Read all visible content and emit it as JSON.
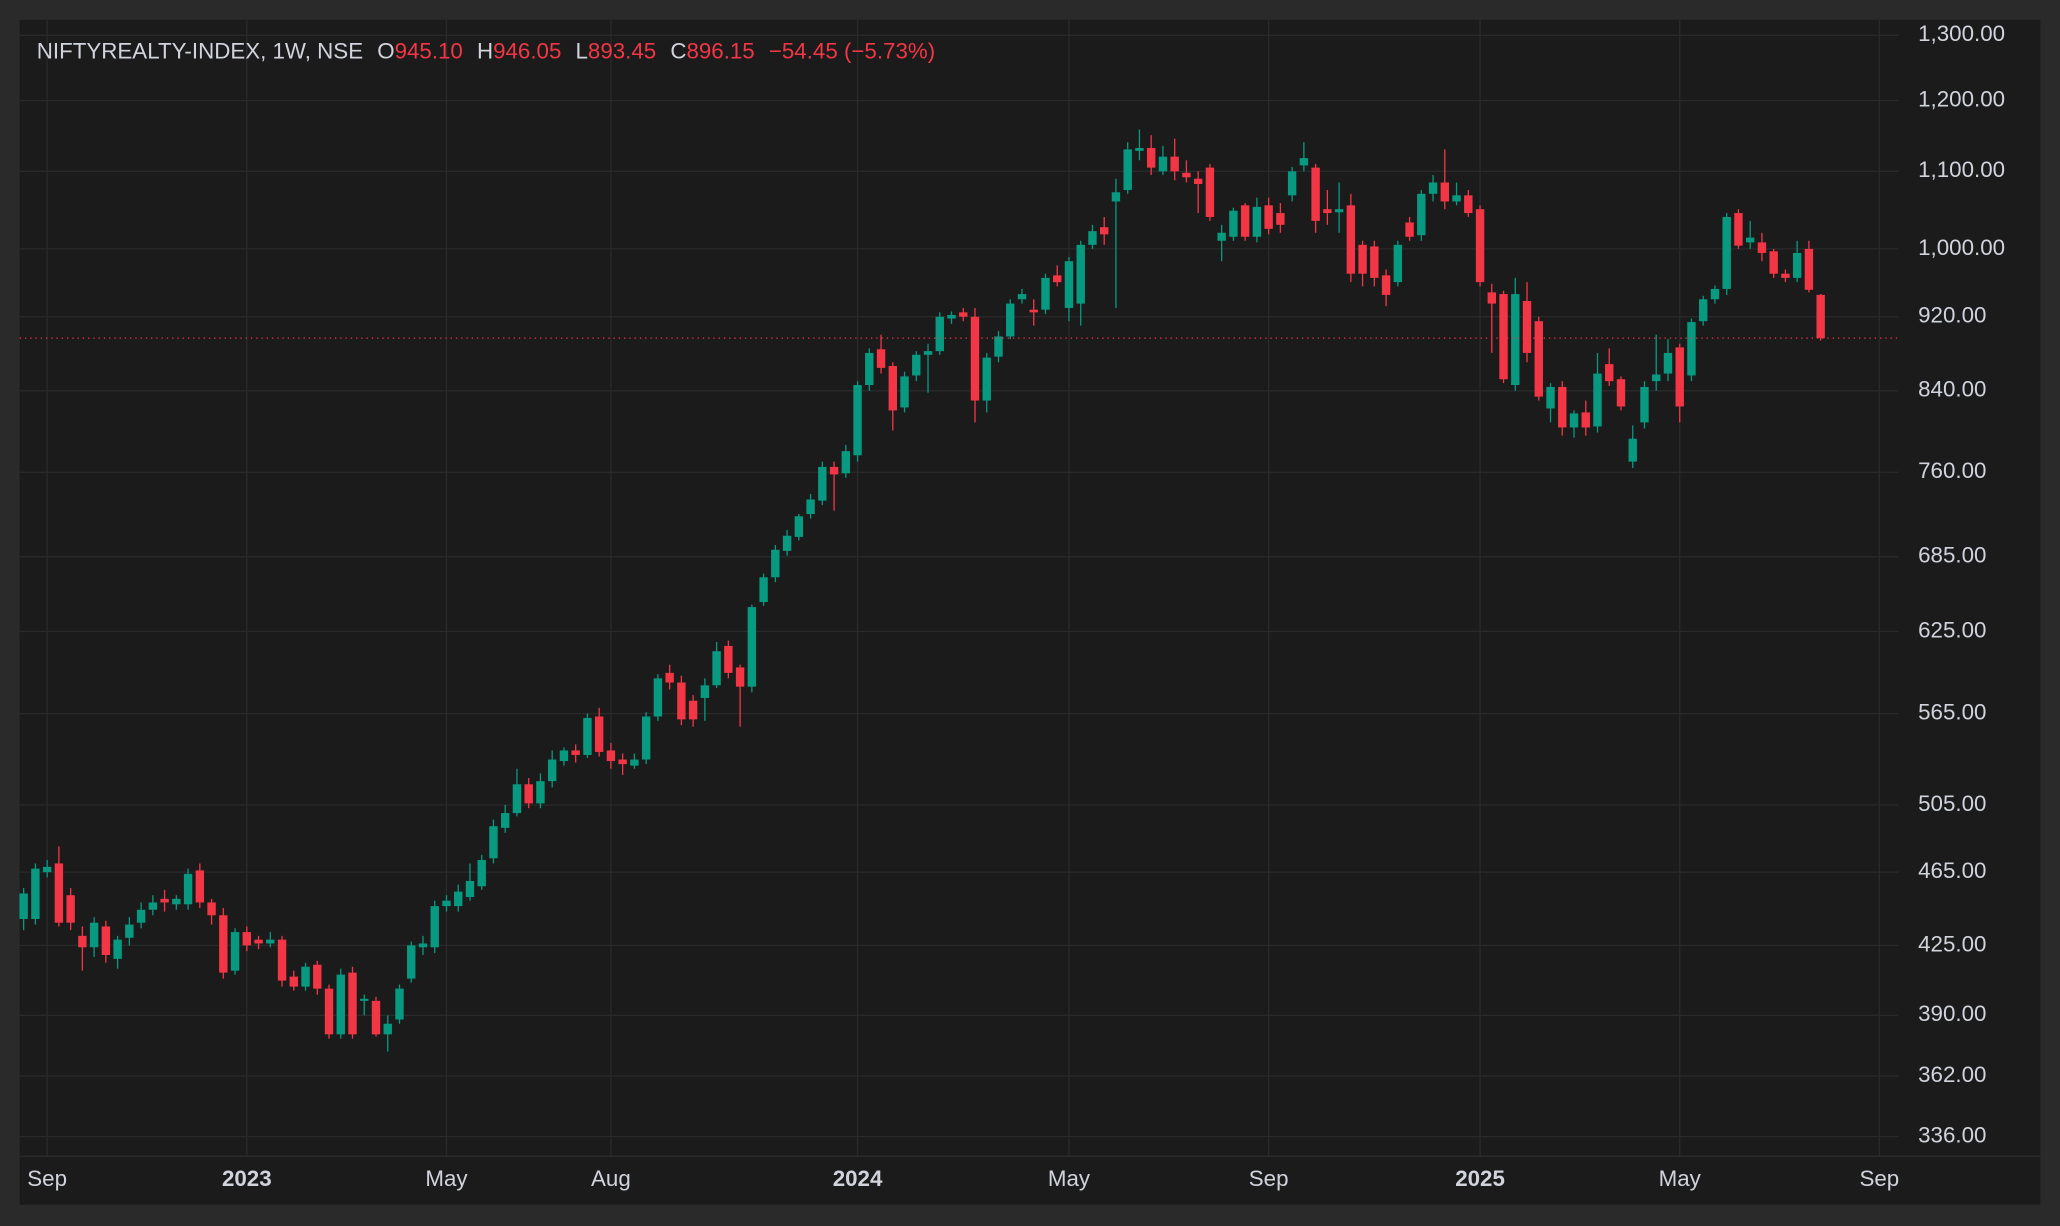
{
  "header": {
    "symbol": "NIFTYREALTY-INDEX, 1W, NSE",
    "open_label": "O",
    "open": "945.10",
    "high_label": "H",
    "high": "946.05",
    "low_label": "L",
    "low": "893.45",
    "close_label": "C",
    "close": "896.15",
    "change": "−54.45 (−5.73%)"
  },
  "chart_data": {
    "type": "candlestick",
    "log": true,
    "grid": true,
    "up_color": "#089981",
    "down_color": "#f23645",
    "categories": [
      null,
      null,
      "Sep",
      null,
      null,
      null,
      null,
      null,
      null,
      null,
      null,
      null,
      null,
      null,
      null,
      null,
      null,
      null,
      null,
      "2023",
      null,
      null,
      null,
      null,
      null,
      null,
      null,
      null,
      null,
      null,
      null,
      null,
      null,
      null,
      null,
      null,
      "May",
      null,
      null,
      null,
      null,
      null,
      null,
      null,
      null,
      null,
      null,
      null,
      null,
      null,
      "Aug",
      null,
      null,
      null,
      null,
      null,
      null,
      null,
      null,
      null,
      null,
      null,
      null,
      null,
      null,
      null,
      null,
      null,
      null,
      null,
      null,
      "2024",
      null,
      null,
      null,
      null,
      null,
      null,
      null,
      null,
      null,
      null,
      null,
      null,
      null,
      null,
      null,
      null,
      null,
      "May",
      null,
      null,
      null,
      null,
      null,
      null,
      null,
      null,
      null,
      null,
      null,
      null,
      null,
      null,
      null,
      null,
      "Sep",
      null,
      null,
      null,
      null,
      null,
      null,
      null,
      null,
      null,
      null,
      null,
      null,
      null,
      null,
      null,
      null,
      null,
      "2025",
      null,
      null,
      null,
      null,
      null,
      null,
      null,
      null,
      null,
      null,
      null,
      null,
      null,
      null,
      null,
      null,
      "May",
      null,
      null,
      null,
      null,
      null,
      null,
      null,
      null,
      null,
      null,
      null,
      null,
      null,
      null,
      null,
      null,
      "Sep",
      null
    ],
    "open": [
      439,
      439,
      465,
      470,
      452,
      430,
      424,
      435,
      418,
      429,
      437,
      444,
      450,
      447,
      447,
      466,
      448,
      441,
      412,
      432,
      428,
      426,
      428,
      409,
      404,
      415,
      403,
      381,
      411,
      397,
      397,
      381,
      388,
      408,
      424,
      424,
      446,
      446,
      451,
      457,
      473,
      491,
      500,
      518,
      506,
      520,
      533,
      540,
      537,
      563,
      540,
      534,
      530,
      534,
      563,
      594,
      587,
      574,
      576,
      585,
      614,
      598,
      584,
      648,
      668,
      690,
      702,
      722,
      734,
      765,
      759,
      776,
      846,
      884,
      866,
      823,
      856,
      878,
      882,
      918,
      925,
      920,
      830,
      876,
      898,
      940,
      928,
      928,
      968,
      930,
      935,
      1005,
      1027,
      1060,
      1075,
      1128,
      1132,
      1100,
      1120,
      1098,
      1090,
      1105,
      1010,
      1015,
      1055,
      1015,
      1055,
      1045,
      1068,
      1108,
      1105,
      1050,
      1046,
      1055,
      1005,
      1003,
      968,
      960,
      1033,
      1017,
      1070,
      1085,
      1060,
      1068,
      1050,
      948,
      946,
      846,
      938,
      915,
      822,
      844,
      803,
      818,
      804,
      868,
      852,
      770,
      808,
      850,
      858,
      886,
      856,
      915,
      940,
      952,
      1045,
      1008,
      1008,
      997,
      970,
      965,
      1000,
      945.1,
      null,
      null,
      null,
      null,
      null,
      null
    ],
    "high": [
      456,
      470,
      472,
      480,
      456,
      435,
      440,
      438,
      430,
      440,
      448,
      452,
      455,
      452,
      467,
      470,
      450,
      445,
      434,
      435,
      430,
      432,
      430,
      412,
      416,
      417,
      405,
      413,
      414,
      400,
      399,
      390,
      405,
      427,
      430,
      449,
      452,
      458,
      470,
      475,
      496,
      505,
      528,
      522,
      525,
      540,
      542,
      544,
      565,
      569,
      545,
      538,
      538,
      566,
      593,
      600,
      592,
      578,
      590,
      617,
      618,
      600,
      646,
      671,
      695,
      708,
      722,
      740,
      770,
      770,
      786,
      850,
      885,
      900,
      870,
      860,
      882,
      890,
      925,
      926,
      930,
      930,
      880,
      904,
      940,
      952,
      940,
      970,
      980,
      990,
      1010,
      1030,
      1040,
      1090,
      1140,
      1158,
      1150,
      1135,
      1145,
      1115,
      1100,
      1110,
      1030,
      1052,
      1058,
      1065,
      1065,
      1058,
      1106,
      1140,
      1110,
      1075,
      1085,
      1070,
      1010,
      1010,
      975,
      1010,
      1040,
      1075,
      1095,
      1130,
      1085,
      1075,
      1055,
      958,
      950,
      965,
      960,
      920,
      848,
      850,
      820,
      830,
      880,
      885,
      855,
      805,
      850,
      900,
      895,
      890,
      918,
      944,
      956,
      1045,
      1050,
      1035,
      1020,
      1000,
      975,
      1010,
      1010,
      946.05,
      null,
      null,
      null,
      null,
      null,
      null
    ],
    "low": [
      433,
      436,
      462,
      435,
      433,
      412,
      419,
      416,
      413,
      425,
      434,
      441,
      443,
      444,
      444,
      445,
      436,
      408,
      410,
      422,
      423,
      424,
      404,
      402,
      402,
      400,
      379,
      379,
      379,
      390,
      380,
      373,
      386,
      406,
      420,
      421,
      443,
      443,
      449,
      455,
      470,
      488,
      498,
      503,
      503,
      516,
      530,
      532,
      535,
      536,
      528,
      524,
      528,
      531,
      560,
      582,
      557,
      556,
      560,
      583,
      590,
      556,
      580,
      645,
      664,
      686,
      699,
      718,
      730,
      725,
      755,
      770,
      840,
      858,
      800,
      818,
      850,
      838,
      878,
      912,
      915,
      808,
      818,
      870,
      895,
      935,
      910,
      923,
      955,
      915,
      910,
      1000,
      1005,
      930,
      1070,
      1115,
      1095,
      1095,
      1088,
      1085,
      1045,
      1035,
      985,
      1010,
      1010,
      1008,
      1018,
      1020,
      1060,
      1100,
      1020,
      1030,
      1020,
      960,
      955,
      955,
      932,
      955,
      1010,
      1010,
      1060,
      1050,
      1055,
      1040,
      955,
      880,
      848,
      840,
      870,
      830,
      808,
      795,
      793,
      795,
      798,
      845,
      820,
      764,
      802,
      840,
      850,
      808,
      850,
      910,
      935,
      945,
      1000,
      1000,
      985,
      965,
      960,
      960,
      948,
      893.45,
      null,
      null,
      null,
      null,
      null,
      null
    ],
    "close": [
      453,
      467,
      468,
      437,
      437,
      424,
      437,
      420,
      428,
      436,
      444,
      448,
      448,
      450,
      464,
      448,
      441,
      411,
      432,
      425,
      426,
      428,
      407,
      404,
      414,
      403,
      381,
      410,
      381,
      398,
      381,
      386,
      403,
      425,
      426,
      446,
      449,
      454,
      460,
      472,
      492,
      500,
      518,
      506,
      520,
      534,
      540,
      537,
      562,
      539,
      533,
      531,
      534,
      563,
      590,
      587,
      561,
      561,
      585,
      610,
      594,
      584,
      644,
      668,
      691,
      703,
      720,
      735,
      765,
      758,
      780,
      846,
      880,
      864,
      820,
      855,
      878,
      882,
      920,
      922,
      920,
      830,
      875,
      898,
      935,
      946,
      925,
      965,
      960,
      985,
      1005,
      1022,
      1018,
      1072,
      1130,
      1132,
      1105,
      1120,
      1100,
      1092,
      1083,
      1040,
      1020,
      1048,
      1015,
      1053,
      1025,
      1030,
      1100,
      1118,
      1035,
      1045,
      1050,
      970,
      970,
      965,
      945,
      1005,
      1015,
      1070,
      1085,
      1060,
      1068,
      1045,
      960,
      935,
      852,
      946,
      880,
      834,
      844,
      803,
      817,
      803,
      858,
      850,
      824,
      792,
      844,
      857,
      880,
      824,
      914,
      940,
      952,
      1040,
      1004,
      1014,
      995,
      970,
      965,
      995,
      951,
      896.15,
      null,
      null,
      null,
      null,
      null,
      null
    ],
    "ylim": [
      328,
      1325
    ],
    "yticks": [
      {
        "value": 1300,
        "label": "1,300.00"
      },
      {
        "value": 1200,
        "label": "1,200.00"
      },
      {
        "value": 1100,
        "label": "1,100.00"
      },
      {
        "value": 1000,
        "label": "1,000.00"
      },
      {
        "value": 920,
        "label": "920.00"
      },
      {
        "value": 840,
        "label": "840.00"
      },
      {
        "value": 760,
        "label": "760.00"
      },
      {
        "value": 685,
        "label": "685.00"
      },
      {
        "value": 625,
        "label": "625.00"
      },
      {
        "value": 565,
        "label": "565.00"
      },
      {
        "value": 505,
        "label": "505.00"
      },
      {
        "value": 465,
        "label": "465.00"
      },
      {
        "value": 425,
        "label": "425.00"
      },
      {
        "value": 390,
        "label": "390.00"
      },
      {
        "value": 362,
        "label": "362.00"
      },
      {
        "value": 336,
        "label": "336.00"
      }
    ]
  }
}
